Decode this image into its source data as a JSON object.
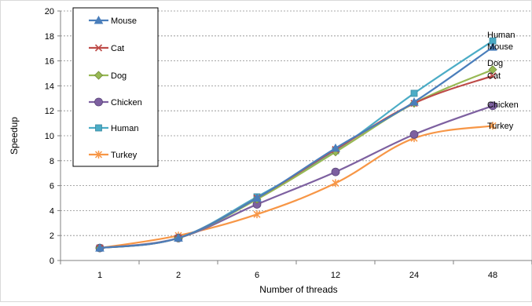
{
  "chart_data": {
    "type": "line",
    "xlabel": "Number of threads",
    "ylabel": "Speedup",
    "categories": [
      "1",
      "2",
      "6",
      "12",
      "24",
      "48"
    ],
    "ylim": [
      0,
      20
    ],
    "yticks": [
      0,
      2,
      4,
      6,
      8,
      10,
      12,
      14,
      16,
      18,
      20
    ],
    "grid": "horizontal",
    "legend_position": "top-left",
    "series": [
      {
        "name": "Mouse",
        "color": "#4A7EBB",
        "marker": "triangle",
        "values": [
          1.0,
          1.8,
          5.0,
          9.0,
          12.7,
          17.1
        ]
      },
      {
        "name": "Cat",
        "color": "#BE4B48",
        "marker": "x",
        "values": [
          1.0,
          1.8,
          5.0,
          8.9,
          12.6,
          14.8
        ]
      },
      {
        "name": "Dog",
        "color": "#98B954",
        "marker": "diamond",
        "values": [
          1.0,
          1.8,
          4.9,
          8.7,
          12.6,
          15.3
        ]
      },
      {
        "name": "Chicken",
        "color": "#7D60A0",
        "marker": "circle",
        "values": [
          1.0,
          1.8,
          4.5,
          7.1,
          10.1,
          12.4
        ]
      },
      {
        "name": "Human",
        "color": "#4BACC6",
        "marker": "square",
        "values": [
          1.0,
          1.8,
          5.1,
          8.8,
          13.4,
          17.6
        ]
      },
      {
        "name": "Turkey",
        "color": "#F79646",
        "marker": "star",
        "values": [
          1.0,
          2.0,
          3.7,
          6.2,
          9.8,
          10.8
        ]
      }
    ],
    "end_labels": [
      "Human",
      "Mouse",
      "Dog",
      "Cat",
      "Chicken",
      "Turkey"
    ]
  }
}
